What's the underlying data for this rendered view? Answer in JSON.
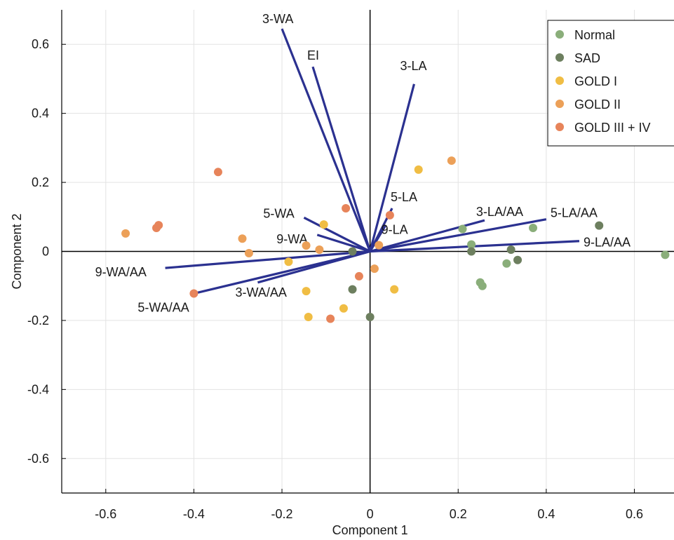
{
  "chart_data": {
    "type": "scatter",
    "title": "",
    "xlabel": "Component 1",
    "ylabel": "Component 2",
    "xlim": [
      -0.7,
      0.69
    ],
    "ylim": [
      -0.7,
      0.7
    ],
    "xticks": [
      -0.6,
      -0.4,
      -0.2,
      0,
      0.2,
      0.4,
      0.6
    ],
    "yticks": [
      -0.6,
      -0.4,
      -0.2,
      0,
      0.2,
      0.4,
      0.6
    ],
    "xtick_labels": [
      "-0.6",
      "-0.4",
      "-0.2",
      "0",
      "0.2",
      "0.4",
      "0.6"
    ],
    "ytick_labels": [
      "-0.6",
      "-0.4",
      "-0.2",
      "0",
      "0.2",
      "0.4",
      "0.6"
    ],
    "grid": true,
    "legend_position": "top-right",
    "vector_color": "#2b3190",
    "series": [
      {
        "name": "Normal",
        "color": "#8aae7a",
        "points": [
          [
            0.21,
            0.065
          ],
          [
            0.23,
            0.02
          ],
          [
            0.37,
            0.068
          ],
          [
            0.25,
            -0.09
          ],
          [
            0.255,
            -0.1
          ],
          [
            0.31,
            -0.035
          ],
          [
            0.67,
            -0.01
          ]
        ]
      },
      {
        "name": "SAD",
        "color": "#6d7f5f",
        "points": [
          [
            -0.04,
            0.0
          ],
          [
            0.23,
            0.0
          ],
          [
            0.32,
            0.005
          ],
          [
            0.335,
            -0.025
          ],
          [
            0.52,
            0.075
          ],
          [
            -0.04,
            -0.11
          ],
          [
            0.0,
            -0.19
          ]
        ]
      },
      {
        "name": "GOLD I",
        "color": "#f0bd44",
        "points": [
          [
            0.11,
            0.237
          ],
          [
            -0.105,
            0.078
          ],
          [
            -0.185,
            -0.03
          ],
          [
            -0.145,
            -0.115
          ],
          [
            -0.14,
            -0.19
          ],
          [
            -0.06,
            -0.165
          ],
          [
            0.055,
            -0.11
          ]
        ]
      },
      {
        "name": "GOLD II",
        "color": "#eca058",
        "points": [
          [
            0.185,
            0.263
          ],
          [
            -0.555,
            0.052
          ],
          [
            -0.29,
            0.037
          ],
          [
            -0.275,
            -0.005
          ],
          [
            -0.145,
            0.017
          ],
          [
            -0.115,
            0.005
          ],
          [
            0.02,
            0.018
          ],
          [
            0.01,
            -0.05
          ]
        ]
      },
      {
        "name": "GOLD III + IV",
        "color": "#e7845a",
        "points": [
          [
            -0.345,
            0.23
          ],
          [
            -0.055,
            0.125
          ],
          [
            -0.485,
            0.068
          ],
          [
            -0.48,
            0.076
          ],
          [
            0.045,
            0.105
          ],
          [
            -0.025,
            -0.072
          ],
          [
            -0.4,
            -0.122
          ],
          [
            -0.09,
            -0.195
          ]
        ]
      }
    ],
    "vectors": [
      {
        "label": "3-WA",
        "x": -0.2,
        "y": 0.645
      },
      {
        "label": "EI",
        "x": -0.13,
        "y": 0.535
      },
      {
        "label": "3-LA",
        "x": 0.1,
        "y": 0.485
      },
      {
        "label": "5-LA",
        "x": 0.05,
        "y": 0.125
      },
      {
        "label": "9-LA",
        "x": 0.035,
        "y": 0.075
      },
      {
        "label": "5-WA",
        "x": -0.15,
        "y": 0.098
      },
      {
        "label": "9-WA",
        "x": -0.12,
        "y": 0.048
      },
      {
        "label": "3-LA/AA",
        "x": 0.26,
        "y": 0.09
      },
      {
        "label": "5-LA/AA",
        "x": 0.4,
        "y": 0.093
      },
      {
        "label": "9-LA/AA",
        "x": 0.475,
        "y": 0.03
      },
      {
        "label": "9-WA/AA",
        "x": -0.465,
        "y": -0.048
      },
      {
        "label": "3-WA/AA",
        "x": -0.255,
        "y": -0.09
      },
      {
        "label": "5-WA/AA",
        "x": -0.4,
        "y": -0.122
      }
    ]
  }
}
